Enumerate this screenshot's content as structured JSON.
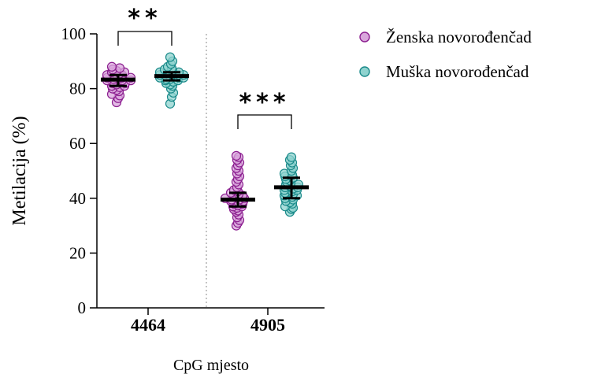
{
  "chart_data": {
    "type": "scatter",
    "subtype": "dot-plot-with-median-and-iqr",
    "ylabel": "Metilacija (%)",
    "xlabel": "CpG mjesto",
    "ylim": [
      0,
      100
    ],
    "yticks": [
      0,
      20,
      40,
      60,
      80,
      100
    ],
    "categories": [
      "4464",
      "4905"
    ],
    "grid": false,
    "legend_position": "top-right",
    "series": [
      {
        "name": "Ženska novorođenčad",
        "color": "#8b1e8f",
        "fill": "#d9a6dc",
        "groups": [
          {
            "category": "4464",
            "median": 83.3,
            "q1": 81.0,
            "q3": 85.0,
            "values": [
              75,
              76.5,
              77.5,
              78,
              79,
              79.5,
              80,
              80.5,
              81,
              81,
              81.5,
              82,
              82,
              82.5,
              82.5,
              83,
              83,
              83,
              83.5,
              83.5,
              84,
              84,
              84,
              84.5,
              84.5,
              85,
              85,
              85.5,
              86,
              86,
              86.5,
              87,
              87.5,
              88
            ]
          },
          {
            "category": "4905",
            "median": 39.5,
            "q1": 37.0,
            "q3": 42.0,
            "values": [
              30,
              31,
              32,
              33,
              34,
              35,
              35.5,
              36,
              36.5,
              37,
              37,
              37.5,
              38,
              38,
              38.5,
              39,
              39,
              39.5,
              39.5,
              40,
              40,
              40.5,
              41,
              41,
              41.5,
              42,
              42.5,
              43,
              44,
              45,
              46,
              47,
              48,
              49,
              50,
              51,
              52,
              53,
              54,
              55,
              55.5
            ]
          }
        ]
      },
      {
        "name": "Muška novorođenčad",
        "color": "#1a8a8a",
        "fill": "#8fd3cf",
        "groups": [
          {
            "category": "4464",
            "median": 84.6,
            "q1": 83.0,
            "q3": 86.0,
            "values": [
              74.5,
              77,
              78.5,
              80,
              81,
              81.5,
              82,
              82.5,
              83,
              83,
              83.5,
              83.5,
              84,
              84,
              84,
              84.5,
              84.5,
              85,
              85,
              85,
              85.5,
              85.5,
              86,
              86,
              86.5,
              87,
              87.5,
              88,
              89,
              90,
              91.5
            ]
          },
          {
            "category": "4905",
            "median": 44.0,
            "q1": 40.0,
            "q3": 47.5,
            "values": [
              35,
              36,
              36.5,
              37,
              38,
              38.5,
              39,
              39.5,
              40,
              40.5,
              41,
              41,
              41.5,
              42,
              42.5,
              43,
              43,
              43.5,
              44,
              44,
              44.5,
              45,
              45,
              45.5,
              46,
              46.5,
              47,
              47.5,
              48,
              48.5,
              49,
              50,
              51,
              52,
              53,
              54,
              55
            ]
          }
        ]
      }
    ],
    "annotations": [
      {
        "text": "**",
        "between": [
          "4464:Ženska novorođenčad",
          "4464:Muška novorođenčad"
        ]
      },
      {
        "text": "***",
        "between": [
          "4905:Ženska novorođenčad",
          "4905:Muška novorođenčad"
        ]
      }
    ]
  }
}
